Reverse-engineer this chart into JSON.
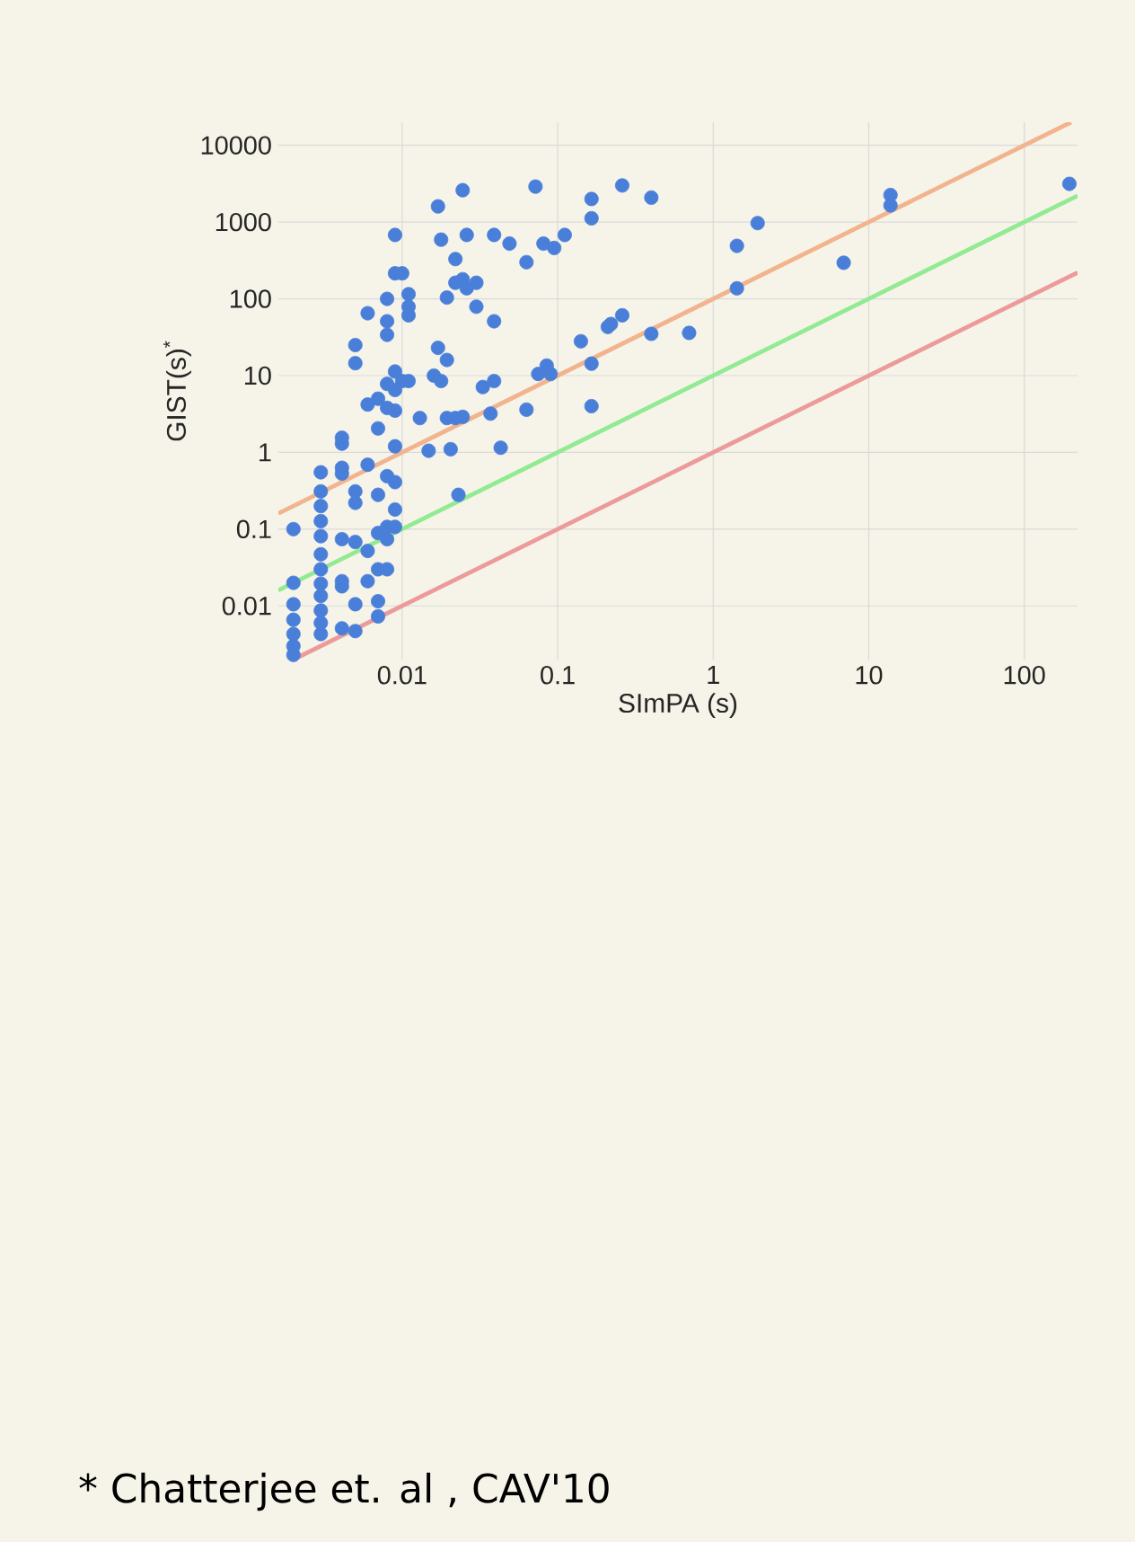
{
  "chart_data": {
    "type": "scatter",
    "xlabel": "SImPA (s)",
    "ylabel": "GIST(s)$^{*}$",
    "annotations": [
      "* Chatterjee et. al , CAV'10"
    ],
    "log": "xy",
    "grid": true,
    "xlim": [
      0.0016,
      220
    ],
    "ylim": [
      0.002,
      20000
    ],
    "xticks": [
      0.01,
      0.1,
      1,
      10,
      100
    ],
    "yticks": [
      0.01,
      0.1,
      1,
      10,
      100,
      1000,
      10000
    ],
    "series": [
      {
        "type": "line",
        "marker": "none",
        "color": "#f2b48e",
        "x": [
          0.0016,
          200
        ],
        "values": [
          0.16,
          20000
        ]
      },
      {
        "type": "line",
        "marker": "none",
        "color": "#92ea92",
        "x": [
          0.0016,
          220
        ],
        "values": [
          0.016,
          2200
        ]
      },
      {
        "type": "line",
        "marker": "none",
        "color": "#ec9a9a",
        "x": [
          0.002,
          220
        ],
        "values": [
          0.002,
          220
        ]
      },
      {
        "marker": "circle",
        "color": "#4a7fd9",
        "x": [
          0.002,
          0.002,
          0.002,
          0.002,
          0.002,
          0.002,
          0.002,
          0.003,
          0.003,
          0.003,
          0.003,
          0.003,
          0.003,
          0.003,
          0.003,
          0.003,
          0.003,
          0.003,
          0.003,
          0.0041,
          0.0041,
          0.0041,
          0.0041,
          0.0041,
          0.0041,
          0.0041,
          0.0041,
          0.005,
          0.005,
          0.005,
          0.005,
          0.005,
          0.005,
          0.005,
          0.006,
          0.006,
          0.006,
          0.006,
          0.006,
          0.007,
          0.007,
          0.007,
          0.007,
          0.007,
          0.007,
          0.007,
          0.008,
          0.008,
          0.008,
          0.008,
          0.008,
          0.008,
          0.008,
          0.008,
          0.008,
          0.009,
          0.009,
          0.009,
          0.009,
          0.009,
          0.009,
          0.009,
          0.009,
          0.009,
          0.01,
          0.01,
          0.011,
          0.011,
          0.011,
          0.011,
          0.013,
          0.0148,
          0.016,
          0.017,
          0.017,
          0.0178,
          0.0178,
          0.0194,
          0.0194,
          0.0194,
          0.0205,
          0.022,
          0.022,
          0.022,
          0.023,
          0.0245,
          0.0245,
          0.0245,
          0.026,
          0.026,
          0.03,
          0.03,
          0.033,
          0.037,
          0.039,
          0.039,
          0.039,
          0.043,
          0.049,
          0.063,
          0.063,
          0.072,
          0.081,
          0.095,
          0.111,
          0.075,
          0.085,
          0.09,
          0.141,
          0.165,
          0.165,
          0.165,
          0.165,
          0.21,
          0.22,
          0.26,
          0.26,
          0.4,
          0.4,
          0.7,
          1.42,
          1.42,
          1.93,
          6.9,
          13.8,
          13.8,
          195
        ],
        "values": [
          0.1,
          0.02,
          0.0105,
          0.0066,
          0.0043,
          0.003,
          0.0023,
          0.55,
          0.31,
          0.2,
          0.127,
          0.081,
          0.047,
          0.03,
          0.0195,
          0.0135,
          0.0087,
          0.006,
          0.0043,
          1.55,
          1.3,
          0.63,
          0.53,
          0.074,
          0.021,
          0.018,
          0.0051,
          25,
          14.5,
          0.31,
          0.22,
          0.068,
          0.0105,
          0.0047,
          65,
          4.2,
          0.69,
          0.052,
          0.021,
          5,
          2.05,
          0.28,
          0.089,
          0.03,
          0.0115,
          0.0073,
          100,
          51,
          34,
          7.8,
          3.8,
          0.49,
          0.107,
          0.074,
          0.03,
          680,
          215,
          11.3,
          6.5,
          3.5,
          1.2,
          0.41,
          0.18,
          0.107,
          215,
          8.5,
          115,
          79,
          61,
          8.5,
          2.8,
          1.05,
          10,
          1600,
          23,
          590,
          8.5,
          104,
          16,
          2.8,
          1.1,
          330,
          162,
          2.8,
          0.28,
          2600,
          180,
          2.9,
          680,
          137,
          162,
          79,
          7.1,
          3.2,
          680,
          51,
          8.5,
          1.15,
          525,
          300,
          3.6,
          2900,
          525,
          460,
          680,
          10.5,
          13.5,
          10.5,
          28,
          2000,
          1120,
          14.3,
          4,
          43,
          47,
          61,
          3000,
          2080,
          35,
          36,
          490,
          137,
          970,
          295,
          2250,
          1650,
          3150
        ]
      }
    ]
  }
}
